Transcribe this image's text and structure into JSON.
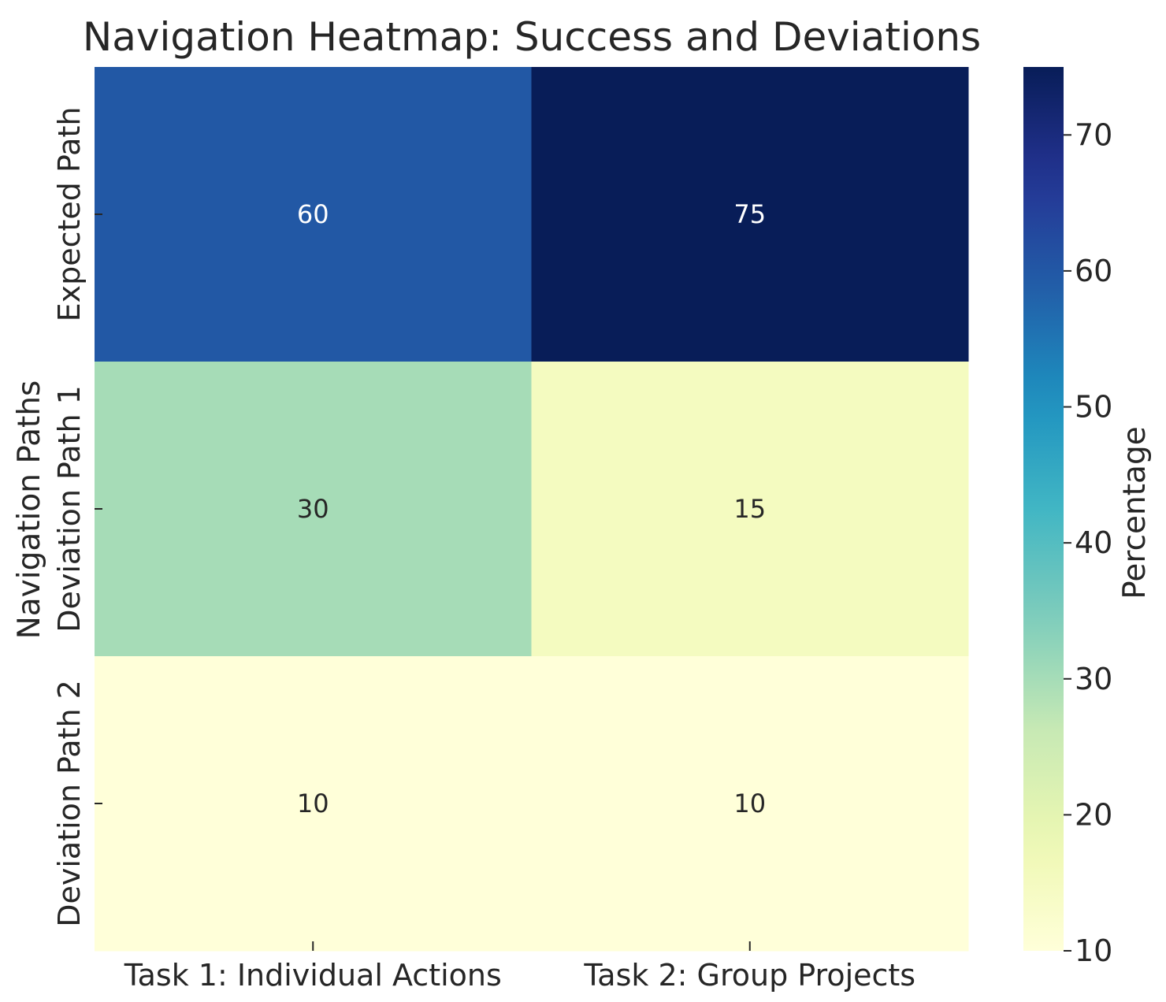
{
  "chart_data": {
    "type": "heatmap",
    "title": "Navigation Heatmap: Success and Deviations",
    "xlabel": "",
    "ylabel": "Navigation Paths",
    "x_categories": [
      "Task 1: Individual Actions",
      "Task 2: Group Projects"
    ],
    "y_categories": [
      "Expected Path",
      "Deviation Path 1",
      "Deviation Path 2"
    ],
    "values": [
      [
        60,
        75
      ],
      [
        30,
        15
      ],
      [
        10,
        10
      ]
    ],
    "colorbar": {
      "label": "Percentage",
      "range": [
        10,
        75
      ],
      "ticks": [
        10,
        20,
        30,
        40,
        50,
        60,
        70
      ]
    },
    "colormap": "YlGnBu",
    "annotated": true
  }
}
